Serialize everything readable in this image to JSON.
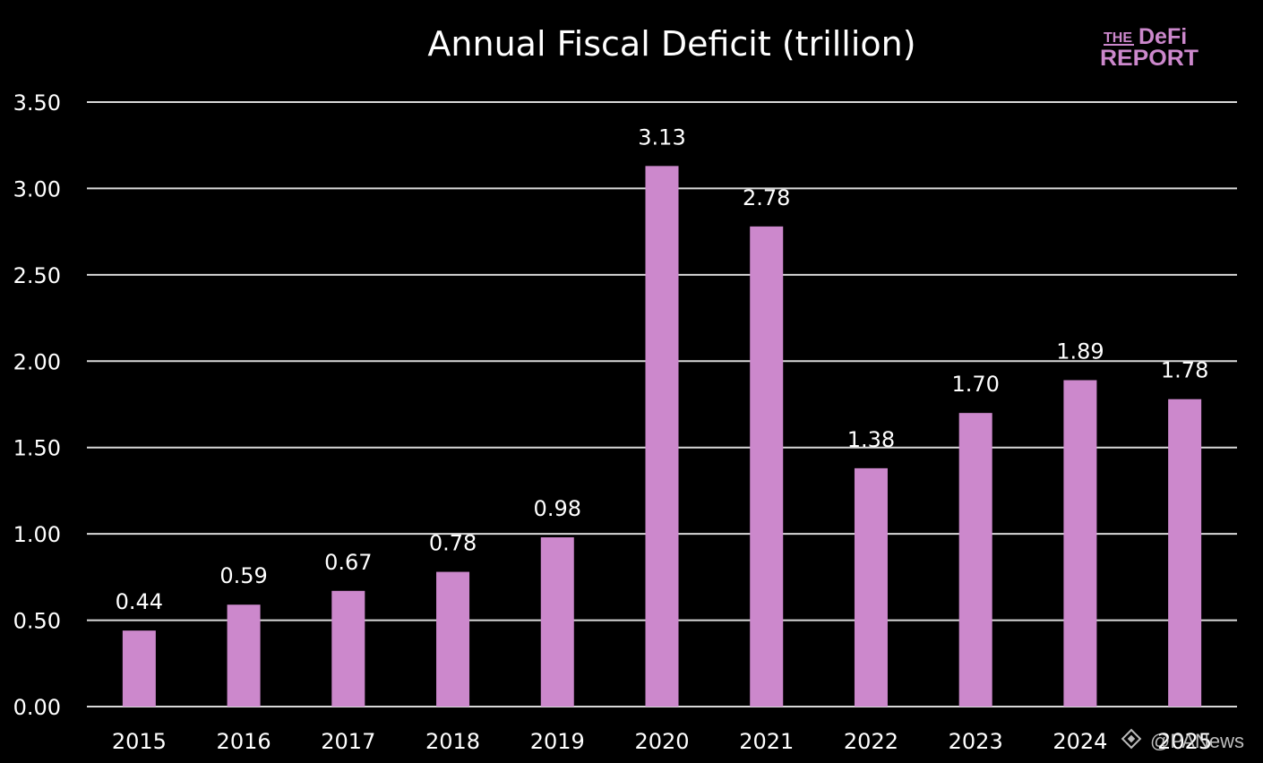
{
  "chart_data": {
    "type": "bar",
    "title": "Annual Fiscal Deficit (trillion)",
    "categories": [
      "2015",
      "2016",
      "2017",
      "2018",
      "2019",
      "2020",
      "2021",
      "2022",
      "2023",
      "2024",
      "2025"
    ],
    "values": [
      0.44,
      0.59,
      0.67,
      0.78,
      0.98,
      3.13,
      2.78,
      1.38,
      1.7,
      1.89,
      1.78
    ],
    "value_labels": [
      "0.44",
      "0.59",
      "0.67",
      "0.78",
      "0.98",
      "3.13",
      "2.78",
      "1.38",
      "1.70",
      "1.89",
      "1.78"
    ],
    "xlabel": "",
    "ylabel": "",
    "ylim": [
      0,
      3.5
    ],
    "yticks": [
      "0.00",
      "0.50",
      "1.00",
      "1.50",
      "2.00",
      "2.50",
      "3.00",
      "3.50"
    ],
    "grid": true,
    "legend": "none",
    "bar_color": "#CC88CC",
    "background_color": "#000000",
    "grid_color": "#D9D9D9",
    "text_color": "#FFFFFF"
  },
  "logo": {
    "line1_small": "THE",
    "line1_big": "DeFi",
    "line2": "REPORT",
    "color": "#CC88CC"
  },
  "watermark": {
    "text": "@PANews",
    "icon": "binance-diamond-icon"
  }
}
